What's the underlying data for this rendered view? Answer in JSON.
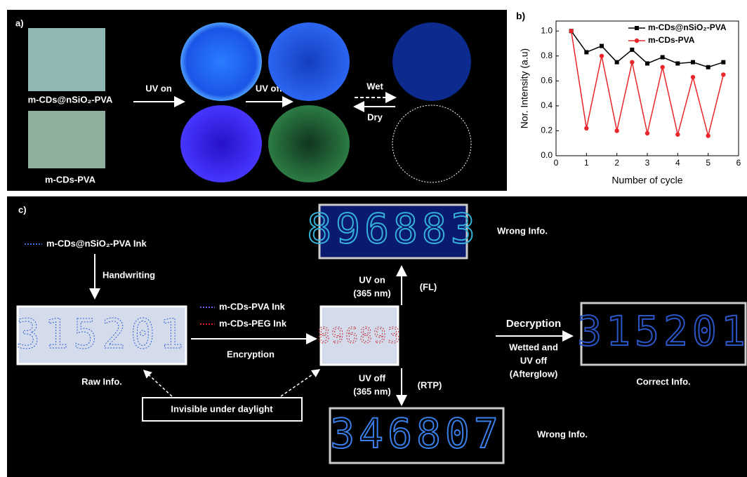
{
  "panel_a": {
    "label": "a)",
    "samples": [
      "m-CDs@nSiO₂-PVA",
      "m-CDs-PVA"
    ],
    "steps": [
      "UV on",
      "UV  off"
    ],
    "switch": [
      "Wet",
      "Dry"
    ]
  },
  "chart_data": {
    "type": "line",
    "label": "b)",
    "x_label": "Number of cycle",
    "y_label": "Nor. Intensity (a.u)",
    "x": [
      0.5,
      1,
      1.5,
      2,
      2.5,
      3,
      3.5,
      4,
      4.5,
      5,
      5.5
    ],
    "series": [
      {
        "name": "m-CDs@nSiO₂-PVA",
        "color": "#000000",
        "values": [
          1.0,
          0.83,
          0.88,
          0.75,
          0.85,
          0.74,
          0.79,
          0.74,
          0.75,
          0.71,
          0.75
        ]
      },
      {
        "name": "m-CDs-PVA",
        "color": "#e8262b",
        "values": [
          1.0,
          0.22,
          0.8,
          0.2,
          0.75,
          0.18,
          0.71,
          0.17,
          0.63,
          0.16,
          0.65
        ]
      }
    ],
    "xlim": [
      0,
      6
    ],
    "ylim": [
      0,
      1.08
    ],
    "xticks": [
      0,
      1,
      2,
      3,
      4,
      5,
      6
    ],
    "yticks": [
      {
        "value": 0,
        "label": "0.0"
      },
      0.2,
      0.4,
      0.6,
      0.8,
      {
        "value": 1,
        "label": "1.0"
      }
    ],
    "legend": "upper right"
  },
  "panel_c": {
    "label": "c)",
    "ink_legend": "m-CDs@nSiO₂-PVA Ink",
    "handwriting": "Handwriting",
    "raw_info": "Raw Info.",
    "inks": [
      "m-CDs-PVA Ink",
      "m-CDs-PEG Ink"
    ],
    "encryption": "Encryption",
    "uv_on": [
      "UV on",
      "(365 nm)"
    ],
    "fl": "(FL)",
    "wrong_top": "Wrong Info.",
    "uv_off": [
      "UV off",
      "(365 nm)"
    ],
    "rtp": "(RTP)",
    "wrong_bottom": "Wrong Info.",
    "decryption": "Decryption",
    "decrypt_cond": [
      "Wetted and",
      "UV off",
      "(Afterglow)"
    ],
    "correct_info": "Correct Info.",
    "invisible": "Invisible  under daylight",
    "displays": {
      "raw": "315201",
      "fl": "896883",
      "mixed": "896893",
      "rtp": "346807",
      "correct": "315201"
    }
  }
}
